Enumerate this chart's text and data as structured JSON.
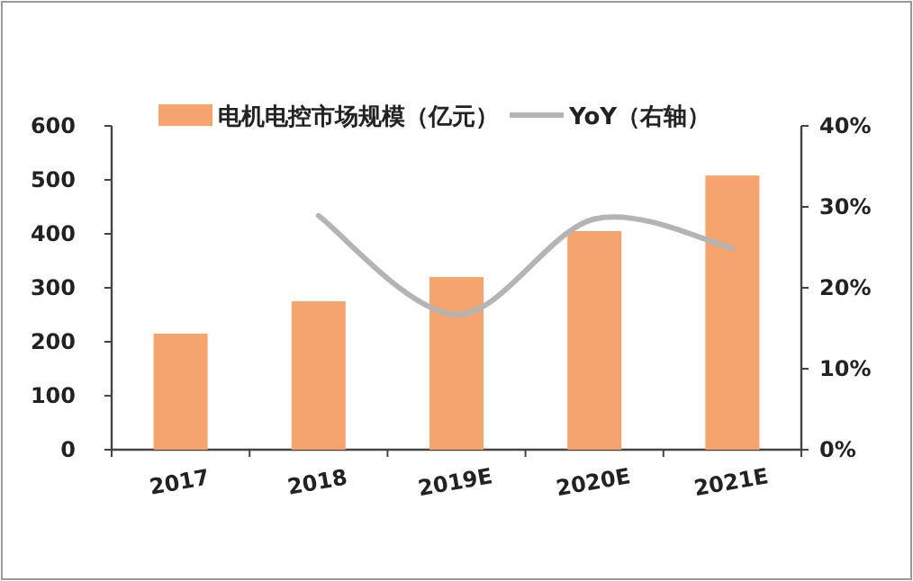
{
  "chart_data": {
    "type": "bar",
    "categories": [
      "2017",
      "2018",
      "2019E",
      "2020E",
      "2021E"
    ],
    "series": [
      {
        "name": "电机电控市场规模（亿元）",
        "color": "#f4a46c",
        "values": [
          215,
          275,
          320,
          405,
          508
        ]
      },
      {
        "name": "YoY（右轴）",
        "type": "line",
        "axis": "y2",
        "color": "#b4b4b4",
        "values": [
          null,
          28.9,
          16.7,
          28.5,
          24.9
        ]
      }
    ],
    "ylim": [
      0,
      600
    ],
    "yticks": [
      0,
      100,
      200,
      300,
      400,
      500,
      600
    ],
    "y2lim": [
      0,
      40
    ],
    "y2ticks": [
      {
        "value": 0,
        "label": "0%"
      },
      {
        "value": 10,
        "label": "10%"
      },
      {
        "value": 20,
        "label": "20%"
      },
      {
        "value": 30,
        "label": "30%"
      },
      {
        "value": 40,
        "label": "40%"
      }
    ],
    "legend": "top",
    "grid": false
  }
}
